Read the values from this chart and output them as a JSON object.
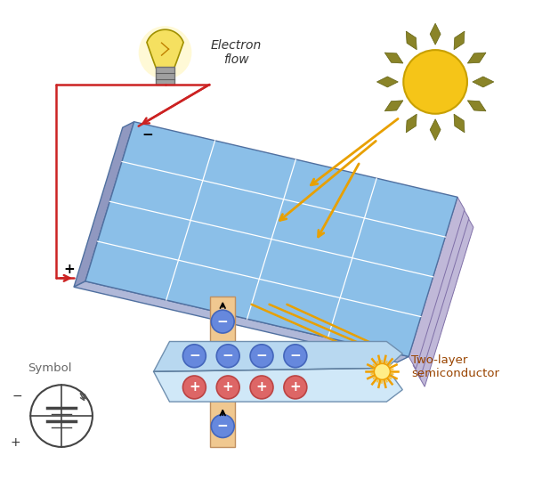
{
  "bg_color": "#ffffff",
  "wire_color": "#cc2222",
  "text_electron_flow": "Electron\nflow",
  "text_two_layer": "Two-layer\nsemiconductor",
  "text_symbol": "Symbol",
  "panel_face": "#8bbfe8",
  "panel_side": "#b0b8d8",
  "panel_edge": "#7080b0",
  "panel_layers": "#c8c0dc",
  "sun_gold": "#f5c518",
  "sun_ray": "#8a8030",
  "arrow_orange": "#e8a000",
  "semi_blue": "#c8e4f4",
  "conn_orange": "#f0c890",
  "elec_neg": "#5580cc",
  "elec_pos": "#cc5555"
}
